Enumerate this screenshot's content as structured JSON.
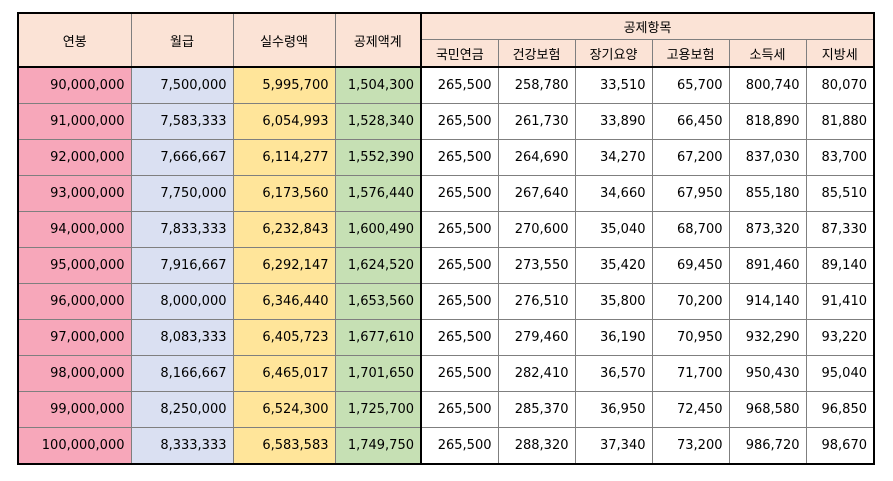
{
  "headers": {
    "annual": "연봉",
    "monthly": "월급",
    "net": "실수령액",
    "deduction_total": "공제액계",
    "deduction_items": "공제항목",
    "pension": "국민연금",
    "health": "건강보험",
    "longterm": "장기요양",
    "employment": "고용보험",
    "income_tax": "소득세",
    "local_tax": "지방세"
  },
  "rows": [
    {
      "annual": "90,000,000",
      "monthly": "7,500,000",
      "net": "5,995,700",
      "total": "1,504,300",
      "pension": "265,500",
      "health": "258,780",
      "longterm": "33,510",
      "employment": "65,700",
      "income_tax": "800,740",
      "local_tax": "80,070"
    },
    {
      "annual": "91,000,000",
      "monthly": "7,583,333",
      "net": "6,054,993",
      "total": "1,528,340",
      "pension": "265,500",
      "health": "261,730",
      "longterm": "33,890",
      "employment": "66,450",
      "income_tax": "818,890",
      "local_tax": "81,880"
    },
    {
      "annual": "92,000,000",
      "monthly": "7,666,667",
      "net": "6,114,277",
      "total": "1,552,390",
      "pension": "265,500",
      "health": "264,690",
      "longterm": "34,270",
      "employment": "67,200",
      "income_tax": "837,030",
      "local_tax": "83,700"
    },
    {
      "annual": "93,000,000",
      "monthly": "7,750,000",
      "net": "6,173,560",
      "total": "1,576,440",
      "pension": "265,500",
      "health": "267,640",
      "longterm": "34,660",
      "employment": "67,950",
      "income_tax": "855,180",
      "local_tax": "85,510"
    },
    {
      "annual": "94,000,000",
      "monthly": "7,833,333",
      "net": "6,232,843",
      "total": "1,600,490",
      "pension": "265,500",
      "health": "270,600",
      "longterm": "35,040",
      "employment": "68,700",
      "income_tax": "873,320",
      "local_tax": "87,330"
    },
    {
      "annual": "95,000,000",
      "monthly": "7,916,667",
      "net": "6,292,147",
      "total": "1,624,520",
      "pension": "265,500",
      "health": "273,550",
      "longterm": "35,420",
      "employment": "69,450",
      "income_tax": "891,460",
      "local_tax": "89,140"
    },
    {
      "annual": "96,000,000",
      "monthly": "8,000,000",
      "net": "6,346,440",
      "total": "1,653,560",
      "pension": "265,500",
      "health": "276,510",
      "longterm": "35,800",
      "employment": "70,200",
      "income_tax": "914,140",
      "local_tax": "91,410"
    },
    {
      "annual": "97,000,000",
      "monthly": "8,083,333",
      "net": "6,405,723",
      "total": "1,677,610",
      "pension": "265,500",
      "health": "279,460",
      "longterm": "36,190",
      "employment": "70,950",
      "income_tax": "932,290",
      "local_tax": "93,220"
    },
    {
      "annual": "98,000,000",
      "monthly": "8,166,667",
      "net": "6,465,017",
      "total": "1,701,650",
      "pension": "265,500",
      "health": "282,410",
      "longterm": "36,570",
      "employment": "71,700",
      "income_tax": "950,430",
      "local_tax": "95,040"
    },
    {
      "annual": "99,000,000",
      "monthly": "8,250,000",
      "net": "6,524,300",
      "total": "1,725,700",
      "pension": "265,500",
      "health": "285,370",
      "longterm": "36,950",
      "employment": "72,450",
      "income_tax": "968,580",
      "local_tax": "96,850"
    },
    {
      "annual": "100,000,000",
      "monthly": "8,333,333",
      "net": "6,583,583",
      "total": "1,749,750",
      "pension": "265,500",
      "health": "288,320",
      "longterm": "37,340",
      "employment": "73,200",
      "income_tax": "986,720",
      "local_tax": "98,670"
    }
  ],
  "colors": {
    "header_bg": "#fbe3d6",
    "annual_bg": "#f7a7ba",
    "monthly_bg": "#dae0f2",
    "net_bg": "#ffe59a",
    "total_bg": "#c6e0b4"
  }
}
